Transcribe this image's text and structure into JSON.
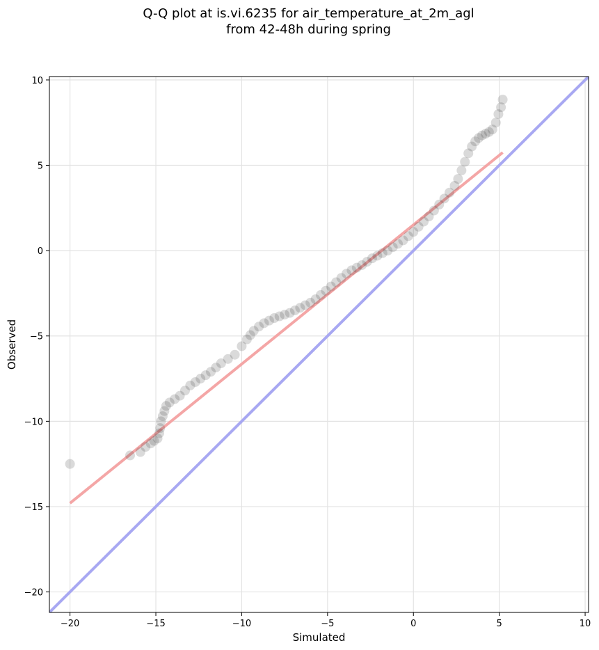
{
  "chart_data": {
    "type": "scatter",
    "title": "Q-Q plot at is.vi.6235 for air_temperature_at_2m_agl\nfrom 42-48h during spring",
    "xlabel": "Simulated",
    "ylabel": "Observed",
    "xlim": [
      -21.2,
      10.2
    ],
    "ylim": [
      -21.2,
      10.2
    ],
    "xticks": [
      -20,
      -15,
      -10,
      -5,
      0,
      5,
      10
    ],
    "yticks": [
      -20,
      -15,
      -10,
      -5,
      0,
      5,
      10
    ],
    "xtick_labels": [
      "−20",
      "−15",
      "−10",
      "−5",
      "0",
      "5",
      "10"
    ],
    "ytick_labels": [
      "−20",
      "−15",
      "−10",
      "−5",
      "0",
      "5",
      "10"
    ],
    "grid": true,
    "colors": {
      "points": "#333333",
      "fit_line": "#f4a6a6",
      "identity_line": "#a8a8f2"
    },
    "lines": [
      {
        "kind": "identity",
        "x": [
          -21.2,
          10.2
        ],
        "y": [
          -21.2,
          10.2
        ]
      },
      {
        "kind": "fit",
        "x": [
          -20.0,
          5.2
        ],
        "y": [
          -14.8,
          5.75
        ]
      }
    ],
    "points": {
      "x": [
        -20.0,
        -16.5,
        -15.9,
        -15.6,
        -15.3,
        -15.1,
        -14.9,
        -14.8,
        -14.75,
        -14.7,
        -14.6,
        -14.5,
        -14.4,
        -14.2,
        -13.9,
        -13.6,
        -13.3,
        -13.0,
        -12.7,
        -12.4,
        -12.1,
        -11.8,
        -11.5,
        -11.2,
        -10.8,
        -10.4,
        -10.0,
        -9.7,
        -9.5,
        -9.3,
        -9.0,
        -8.7,
        -8.4,
        -8.1,
        -7.8,
        -7.5,
        -7.2,
        -6.9,
        -6.6,
        -6.3,
        -6.0,
        -5.7,
        -5.4,
        -5.1,
        -4.8,
        -4.5,
        -4.2,
        -3.9,
        -3.6,
        -3.3,
        -3.0,
        -2.7,
        -2.4,
        -2.1,
        -1.8,
        -1.5,
        -1.2,
        -0.9,
        -0.6,
        -0.3,
        0.0,
        0.3,
        0.6,
        0.9,
        1.2,
        1.5,
        1.8,
        2.1,
        2.4,
        2.6,
        2.8,
        3.0,
        3.2,
        3.4,
        3.6,
        3.8,
        4.0,
        4.2,
        4.4,
        4.6,
        4.8,
        4.95,
        5.1,
        5.2
      ],
      "y": [
        -12.5,
        -12.0,
        -11.8,
        -11.5,
        -11.3,
        -11.15,
        -11.0,
        -10.7,
        -10.4,
        -10.0,
        -9.7,
        -9.4,
        -9.1,
        -8.9,
        -8.7,
        -8.5,
        -8.2,
        -7.9,
        -7.7,
        -7.5,
        -7.3,
        -7.1,
        -6.85,
        -6.6,
        -6.35,
        -6.1,
        -5.6,
        -5.2,
        -4.95,
        -4.7,
        -4.45,
        -4.25,
        -4.1,
        -3.95,
        -3.85,
        -3.75,
        -3.65,
        -3.5,
        -3.35,
        -3.2,
        -3.05,
        -2.85,
        -2.6,
        -2.35,
        -2.1,
        -1.85,
        -1.6,
        -1.35,
        -1.15,
        -1.0,
        -0.85,
        -0.65,
        -0.45,
        -0.3,
        -0.15,
        0.0,
        0.2,
        0.4,
        0.6,
        0.85,
        1.1,
        1.4,
        1.7,
        2.0,
        2.35,
        2.7,
        3.05,
        3.4,
        3.8,
        4.2,
        4.7,
        5.2,
        5.7,
        6.1,
        6.4,
        6.6,
        6.75,
        6.85,
        6.95,
        7.1,
        7.5,
        8.0,
        8.4,
        8.85
      ]
    }
  }
}
